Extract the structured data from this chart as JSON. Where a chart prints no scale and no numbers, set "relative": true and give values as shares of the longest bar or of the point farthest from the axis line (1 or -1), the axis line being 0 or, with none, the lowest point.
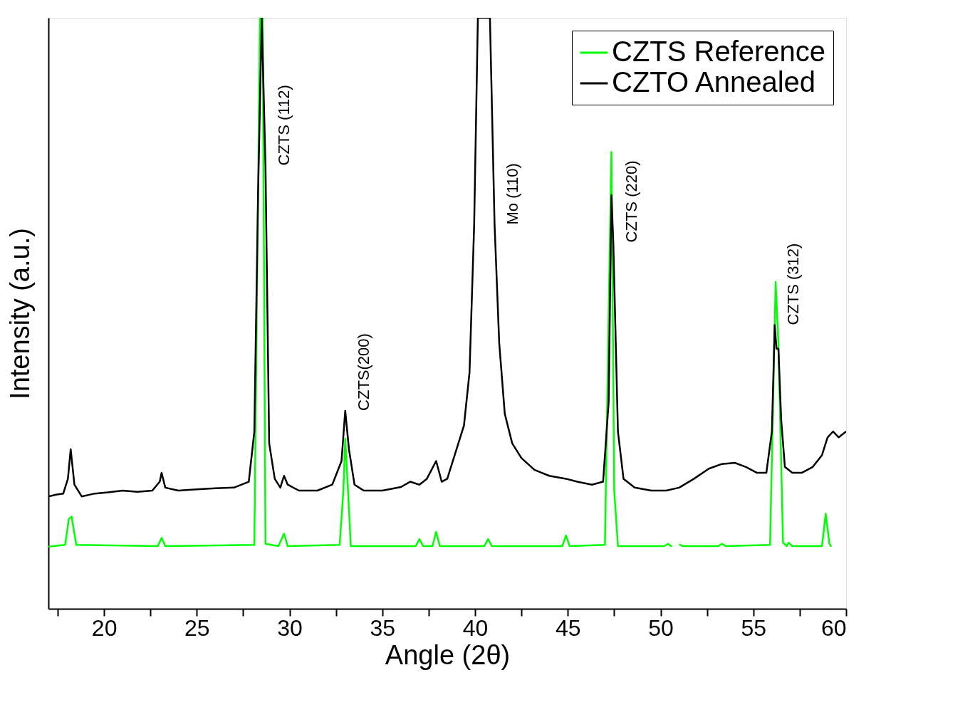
{
  "chart_data": {
    "type": "line",
    "relative": true,
    "xlabel": "Angle (2θ)",
    "ylabel": "Intensity (a.u.)",
    "xlim": [
      17,
      60
    ],
    "xticks": [
      {
        "value": 17.5,
        "label": null
      },
      20,
      {
        "value": 22.5,
        "label": null
      },
      25,
      {
        "value": 27.5,
        "label": null
      },
      30,
      {
        "value": 32.5,
        "label": null
      },
      35,
      {
        "value": 37.5,
        "label": null
      },
      40,
      {
        "value": 42.5,
        "label": null
      },
      45,
      {
        "value": 47.5,
        "label": null
      },
      50,
      {
        "value": 52.5,
        "label": null
      },
      55,
      {
        "value": 57.5,
        "label": null
      },
      60
    ],
    "grid": false,
    "legend": "top right",
    "marker": "none",
    "line_style": "solid",
    "series": [
      {
        "name": "CZTS Reference",
        "color": "#00ff00",
        "x": [
          17,
          17.9,
          18.1,
          18.25,
          18.5,
          22.9,
          23.1,
          23.3,
          28.1,
          28.3,
          28.4,
          28.55,
          28.7,
          29.4,
          29.7,
          29.9,
          32.7,
          32.9,
          33.0,
          33.15,
          33.3,
          36.8,
          37.0,
          37.2,
          37.7,
          37.9,
          38.1,
          40.5,
          40.7,
          40.9,
          44.7,
          44.9,
          45.1,
          47.0,
          47.2,
          47.35,
          47.5,
          47.7,
          50.2,
          50.4,
          50.6,
          50.8,
          51.0,
          51.2,
          53.1,
          53.3,
          53.5,
          55.9,
          56.1,
          56.2,
          56.35,
          56.6,
          56.8,
          56.9,
          57.1,
          58.7,
          58.9,
          59.1,
          59.2
        ],
        "values": [
          0.105,
          0.108,
          0.152,
          0.156,
          0.108,
          0.106,
          0.12,
          0.106,
          0.108,
          0.7,
          1.0,
          1.0,
          0.11,
          0.106,
          0.127,
          0.106,
          0.108,
          0.2,
          0.288,
          0.2,
          0.106,
          0.106,
          0.118,
          0.106,
          0.106,
          0.13,
          0.106,
          0.106,
          0.118,
          0.106,
          0.106,
          0.124,
          0.106,
          0.108,
          0.5,
          0.773,
          0.2,
          0.106,
          0.106,
          0.11,
          0.105,
          null,
          0.109,
          0.106,
          0.106,
          0.11,
          0.106,
          0.108,
          0.4,
          0.553,
          0.45,
          0.112,
          0.106,
          0.112,
          0.106,
          0.106,
          0.161,
          0.11,
          0.105
        ]
      },
      {
        "name": "CZTO Annealed",
        "color": "#000000",
        "x": [
          17,
          17.4,
          17.8,
          18.05,
          18.2,
          18.4,
          18.8,
          19.5,
          20.2,
          21,
          21.8,
          22.6,
          23.0,
          23.1,
          23.3,
          24,
          25,
          26,
          27,
          27.8,
          28.1,
          28.3,
          28.5,
          28.7,
          28.9,
          29.2,
          29.5,
          29.7,
          29.9,
          30.5,
          31.5,
          32.3,
          32.8,
          33.0,
          33.2,
          33.5,
          34,
          35,
          36,
          36.5,
          37.0,
          37.4,
          37.9,
          38.2,
          38.5,
          39.0,
          39.4,
          39.7,
          39.95,
          40.15,
          40.8,
          41.05,
          41.3,
          41.6,
          42.0,
          42.5,
          43.2,
          44,
          44.9,
          45.5,
          46.3,
          46.9,
          47.2,
          47.35,
          47.45,
          47.7,
          48,
          48.6,
          49.5,
          50.3,
          51,
          51.8,
          52.6,
          53.3,
          54,
          54.6,
          55.2,
          55.7,
          56.0,
          56.15,
          56.25,
          56.35,
          56.5,
          56.7,
          57.1,
          57.6,
          58.2,
          58.7,
          59.0,
          59.3,
          59.6,
          60
        ],
        "values": [
          0.19,
          0.193,
          0.195,
          0.22,
          0.27,
          0.21,
          0.19,
          0.195,
          0.197,
          0.2,
          0.198,
          0.2,
          0.215,
          0.23,
          0.205,
          0.2,
          0.202,
          0.204,
          0.205,
          0.215,
          0.3,
          0.7,
          1.0,
          0.75,
          0.28,
          0.22,
          0.205,
          0.225,
          0.21,
          0.2,
          0.2,
          0.21,
          0.25,
          0.335,
          0.27,
          0.21,
          0.2,
          0.2,
          0.206,
          0.215,
          0.21,
          0.22,
          0.25,
          0.215,
          0.22,
          0.27,
          0.31,
          0.4,
          0.65,
          1.0,
          1.0,
          0.65,
          0.45,
          0.33,
          0.28,
          0.255,
          0.235,
          0.225,
          0.22,
          0.215,
          0.21,
          0.215,
          0.35,
          0.7,
          0.62,
          0.3,
          0.22,
          0.205,
          0.2,
          0.2,
          0.205,
          0.22,
          0.237,
          0.245,
          0.247,
          0.24,
          0.23,
          0.23,
          0.3,
          0.48,
          0.44,
          0.44,
          0.32,
          0.24,
          0.23,
          0.23,
          0.24,
          0.26,
          0.29,
          0.3,
          0.29,
          0.3
        ]
      }
    ],
    "annotations": [
      {
        "text": "CZTS (112)",
        "x": 28.7,
        "y": 0.75
      },
      {
        "text": "CZTS(200)",
        "x": 33.0,
        "y": 0.335
      },
      {
        "text": "Mo (110)",
        "x": 41.05,
        "y": 0.65
      },
      {
        "text": "CZTS (220)",
        "x": 47.45,
        "y": 0.62
      },
      {
        "text": "CZTS (312)",
        "x": 56.15,
        "y": 0.48
      }
    ]
  }
}
